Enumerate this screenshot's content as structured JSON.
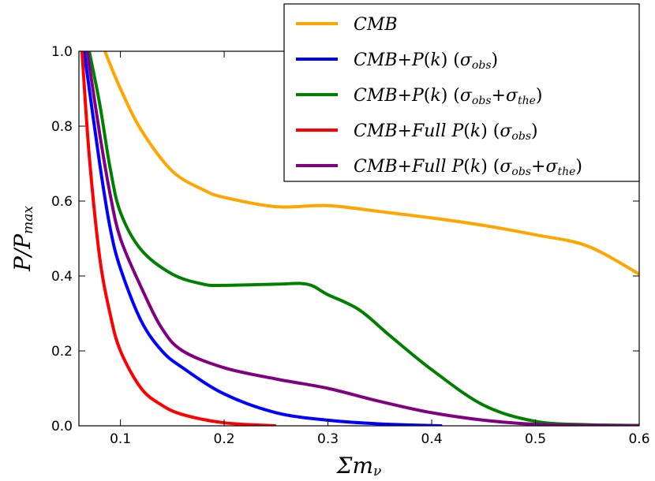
{
  "chart_data": {
    "type": "line",
    "title": "",
    "xlabel": "Σm_ν",
    "ylabel": "P/P_max",
    "xlim": [
      0.06,
      0.6
    ],
    "ylim": [
      0.0,
      1.0
    ],
    "grid": false,
    "legend_position": "top-right",
    "xticks": [
      "0.1",
      "0.2",
      "0.3",
      "0.4",
      "0.5",
      "0.6"
    ],
    "yticks": [
      "0.0",
      "0.2",
      "0.4",
      "0.6",
      "0.8",
      "1.0"
    ],
    "series": [
      {
        "name": "CMB",
        "color": "#ffa500",
        "x": [
          0.085,
          0.1,
          0.12,
          0.15,
          0.18,
          0.2,
          0.25,
          0.3,
          0.35,
          0.4,
          0.45,
          0.5,
          0.55,
          0.6
        ],
        "y": [
          1.0,
          0.9,
          0.79,
          0.68,
          0.63,
          0.61,
          0.585,
          0.588,
          0.572,
          0.555,
          0.535,
          0.51,
          0.48,
          0.405
        ]
      },
      {
        "name": "CMB+P(k) (σobs)",
        "color": "#0000ff",
        "x": [
          0.065,
          0.08,
          0.09,
          0.1,
          0.12,
          0.14,
          0.16,
          0.2,
          0.25,
          0.3,
          0.35,
          0.41
        ],
        "y": [
          1.0,
          0.7,
          0.53,
          0.42,
          0.28,
          0.2,
          0.155,
          0.085,
          0.035,
          0.015,
          0.005,
          0.0
        ]
      },
      {
        "name": "CMB+P(k) (σobs+σthe)",
        "color": "#008000",
        "x": [
          0.07,
          0.08,
          0.09,
          0.1,
          0.12,
          0.15,
          0.18,
          0.2,
          0.25,
          0.28,
          0.3,
          0.33,
          0.36,
          0.4,
          0.45,
          0.5,
          0.55,
          0.6
        ],
        "y": [
          1.0,
          0.86,
          0.69,
          0.57,
          0.47,
          0.405,
          0.378,
          0.375,
          0.378,
          0.378,
          0.35,
          0.31,
          0.24,
          0.15,
          0.055,
          0.012,
          0.003,
          0.001
        ]
      },
      {
        "name": "CMB+Full P(k) (σobs)",
        "color": "#ff0000",
        "x": [
          0.063,
          0.07,
          0.08,
          0.09,
          0.1,
          0.12,
          0.14,
          0.16,
          0.2,
          0.25
        ],
        "y": [
          1.0,
          0.72,
          0.45,
          0.3,
          0.2,
          0.1,
          0.055,
          0.03,
          0.008,
          0.0
        ]
      },
      {
        "name": "CMB+Full P(k) (σobs+σthe)",
        "color": "#800080",
        "x": [
          0.068,
          0.08,
          0.09,
          0.1,
          0.12,
          0.14,
          0.16,
          0.2,
          0.25,
          0.3,
          0.35,
          0.4,
          0.45,
          0.5,
          0.55,
          0.6
        ],
        "y": [
          1.0,
          0.78,
          0.62,
          0.5,
          0.37,
          0.26,
          0.2,
          0.155,
          0.125,
          0.1,
          0.065,
          0.035,
          0.015,
          0.004,
          0.001,
          0.0
        ]
      }
    ]
  }
}
